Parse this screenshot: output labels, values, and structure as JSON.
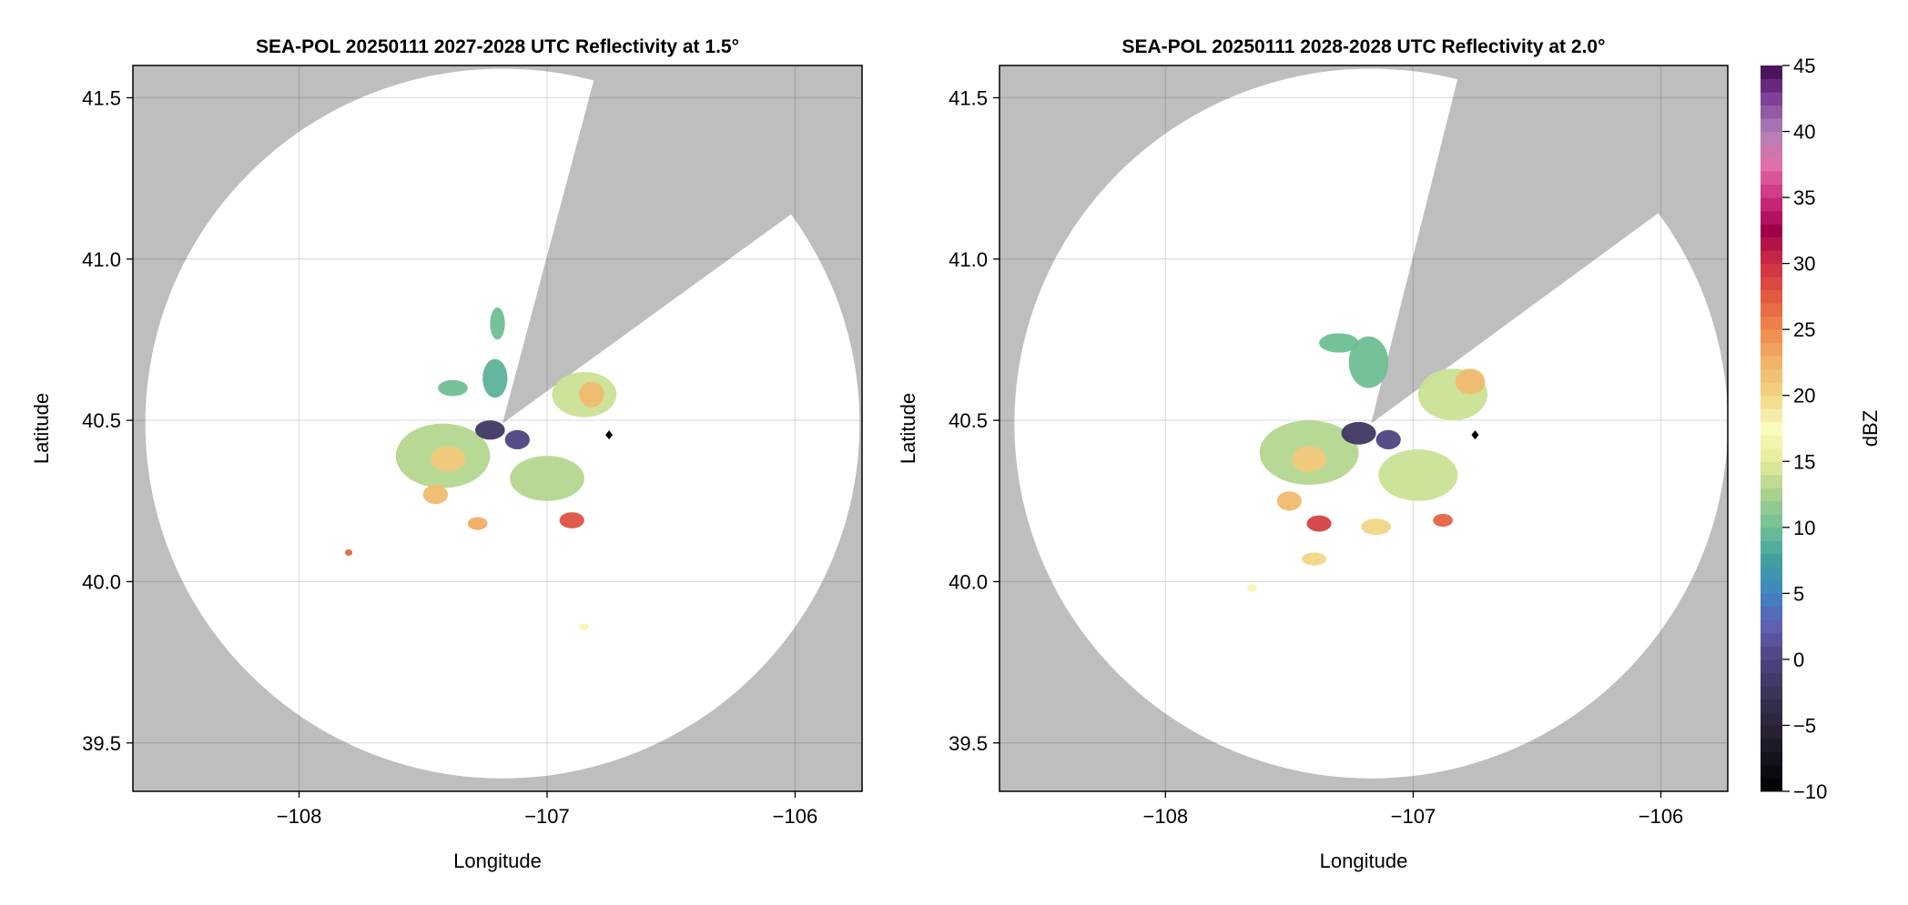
{
  "chart_data": [
    {
      "type": "heatmap",
      "title": "SEA-POL 20250111 2027-2028 UTC Reflectivity at 1.5°",
      "xlabel": "Longitude",
      "ylabel": "Latitude",
      "xlim": [
        -108.67,
        -105.73
      ],
      "ylim": [
        39.35,
        41.6
      ],
      "xticks": [
        -108,
        -107,
        -106
      ],
      "xtick_labels": [
        "−108",
        "−107",
        "−106"
      ],
      "yticks": [
        39.5,
        40.0,
        40.5,
        41.0,
        41.5
      ],
      "ytick_labels": [
        "39.5",
        "40.0",
        "40.5",
        "41.0",
        "41.5"
      ],
      "grid": true,
      "radar_center": [
        -107.18,
        40.49
      ],
      "coverage_radius_deg": {
        "lon": 1.44,
        "lat": 1.1
      },
      "blocked_sector_rays": [
        [
          -106.82,
          41.53
        ],
        [
          -106.05,
          41.12
        ]
      ],
      "marker": {
        "lon": -106.75,
        "lat": 40.455,
        "shape": "diamond",
        "color": "#000000"
      },
      "echo_regions": [
        {
          "lon": -107.42,
          "lat": 40.39,
          "rlon": 0.19,
          "rlat": 0.1,
          "dbz": 13
        },
        {
          "lon": -107.4,
          "lat": 40.38,
          "rlon": 0.07,
          "rlat": 0.04,
          "dbz": 21
        },
        {
          "lon": -107.0,
          "lat": 40.32,
          "rlon": 0.15,
          "rlat": 0.07,
          "dbz": 13
        },
        {
          "lon": -107.23,
          "lat": 40.47,
          "rlon": 0.06,
          "rlat": 0.03,
          "dbz": -2
        },
        {
          "lon": -107.12,
          "lat": 40.44,
          "rlon": 0.05,
          "rlat": 0.03,
          "dbz": 0
        },
        {
          "lon": -106.85,
          "lat": 40.58,
          "rlon": 0.13,
          "rlat": 0.07,
          "dbz": 14
        },
        {
          "lon": -106.82,
          "lat": 40.58,
          "rlon": 0.05,
          "rlat": 0.04,
          "dbz": 22
        },
        {
          "lon": -107.21,
          "lat": 40.63,
          "rlon": 0.05,
          "rlat": 0.06,
          "dbz": 9
        },
        {
          "lon": -107.2,
          "lat": 40.8,
          "rlon": 0.03,
          "rlat": 0.05,
          "dbz": 10
        },
        {
          "lon": -107.38,
          "lat": 40.6,
          "rlon": 0.06,
          "rlat": 0.025,
          "dbz": 10
        },
        {
          "lon": -106.9,
          "lat": 40.19,
          "rlon": 0.05,
          "rlat": 0.025,
          "dbz": 28
        },
        {
          "lon": -107.45,
          "lat": 40.27,
          "rlon": 0.05,
          "rlat": 0.03,
          "dbz": 22
        },
        {
          "lon": -107.28,
          "lat": 40.18,
          "rlon": 0.04,
          "rlat": 0.02,
          "dbz": 23
        },
        {
          "lon": -107.8,
          "lat": 40.09,
          "rlon": 0.015,
          "rlat": 0.01,
          "dbz": 27
        },
        {
          "lon": -106.85,
          "lat": 39.86,
          "rlon": 0.02,
          "rlat": 0.01,
          "dbz": 18
        }
      ]
    },
    {
      "type": "heatmap",
      "title": "SEA-POL 20250111 2028-2028 UTC Reflectivity at 2.0°",
      "xlabel": "Longitude",
      "ylabel": "Latitude",
      "xlim": [
        -108.67,
        -105.73
      ],
      "ylim": [
        39.35,
        41.6
      ],
      "xticks": [
        -108,
        -107,
        -106
      ],
      "xtick_labels": [
        "−108",
        "−107",
        "−106"
      ],
      "yticks": [
        39.5,
        40.0,
        40.5,
        41.0,
        41.5
      ],
      "ytick_labels": [
        "39.5",
        "40.0",
        "40.5",
        "41.0",
        "41.5"
      ],
      "grid": true,
      "radar_center": [
        -107.17,
        40.49
      ],
      "coverage_radius_deg": {
        "lon": 1.44,
        "lat": 1.1
      },
      "blocked_sector_rays": [
        [
          -106.83,
          41.53
        ],
        [
          -106.05,
          41.12
        ]
      ],
      "marker": {
        "lon": -106.75,
        "lat": 40.455,
        "shape": "diamond",
        "color": "#000000"
      },
      "echo_regions": [
        {
          "lon": -107.42,
          "lat": 40.4,
          "rlon": 0.2,
          "rlat": 0.1,
          "dbz": 13
        },
        {
          "lon": -107.42,
          "lat": 40.38,
          "rlon": 0.07,
          "rlat": 0.04,
          "dbz": 21
        },
        {
          "lon": -106.98,
          "lat": 40.33,
          "rlon": 0.16,
          "rlat": 0.08,
          "dbz": 14
        },
        {
          "lon": -107.22,
          "lat": 40.46,
          "rlon": 0.07,
          "rlat": 0.035,
          "dbz": -2
        },
        {
          "lon": -107.1,
          "lat": 40.44,
          "rlon": 0.05,
          "rlat": 0.03,
          "dbz": 0
        },
        {
          "lon": -106.84,
          "lat": 40.58,
          "rlon": 0.14,
          "rlat": 0.08,
          "dbz": 14
        },
        {
          "lon": -106.77,
          "lat": 40.62,
          "rlon": 0.06,
          "rlat": 0.04,
          "dbz": 22
        },
        {
          "lon": -107.18,
          "lat": 40.68,
          "rlon": 0.08,
          "rlat": 0.08,
          "dbz": 10
        },
        {
          "lon": -107.3,
          "lat": 40.74,
          "rlon": 0.08,
          "rlat": 0.03,
          "dbz": 10
        },
        {
          "lon": -107.38,
          "lat": 40.18,
          "rlon": 0.05,
          "rlat": 0.025,
          "dbz": 29
        },
        {
          "lon": -106.88,
          "lat": 40.19,
          "rlon": 0.04,
          "rlat": 0.02,
          "dbz": 27
        },
        {
          "lon": -107.5,
          "lat": 40.25,
          "rlon": 0.05,
          "rlat": 0.03,
          "dbz": 22
        },
        {
          "lon": -107.15,
          "lat": 40.17,
          "rlon": 0.06,
          "rlat": 0.025,
          "dbz": 20
        },
        {
          "lon": -107.4,
          "lat": 40.07,
          "rlon": 0.05,
          "rlat": 0.02,
          "dbz": 20
        },
        {
          "lon": -107.65,
          "lat": 39.98,
          "rlon": 0.02,
          "rlat": 0.012,
          "dbz": 18
        }
      ]
    }
  ],
  "colorbar": {
    "label": "dBZ",
    "range": [
      -10,
      45
    ],
    "step": 1,
    "ticks": [
      -10,
      -5,
      0,
      5,
      10,
      15,
      20,
      25,
      30,
      35,
      40,
      45
    ],
    "tick_labels": [
      "−10",
      "−5",
      "0",
      "5",
      "10",
      "15",
      "20",
      "25",
      "30",
      "35",
      "40",
      "45"
    ],
    "colormap_anchors": [
      [
        -10,
        "#000000"
      ],
      [
        -5,
        "#2a2438"
      ],
      [
        0,
        "#4f4380"
      ],
      [
        2.5,
        "#6060b0"
      ],
      [
        5,
        "#3f84bf"
      ],
      [
        7.5,
        "#40a0a0"
      ],
      [
        10,
        "#6ebf94"
      ],
      [
        12.5,
        "#a8d28d"
      ],
      [
        15,
        "#e3ec9a"
      ],
      [
        17.5,
        "#fbfbbd"
      ],
      [
        20,
        "#f1d685"
      ],
      [
        22.5,
        "#f0b469"
      ],
      [
        25,
        "#ef8a4a"
      ],
      [
        27.5,
        "#e25a40"
      ],
      [
        30,
        "#ce3045"
      ],
      [
        32.5,
        "#a0004a"
      ],
      [
        35,
        "#cc3080"
      ],
      [
        37.5,
        "#e070a8"
      ],
      [
        40,
        "#b080b8"
      ],
      [
        42.5,
        "#80409a"
      ],
      [
        45,
        "#3f0a4f"
      ]
    ]
  },
  "colors": {
    "no_coverage": "#bebebe",
    "coverage": "#ffffff",
    "grid": "#d9d9d9"
  }
}
